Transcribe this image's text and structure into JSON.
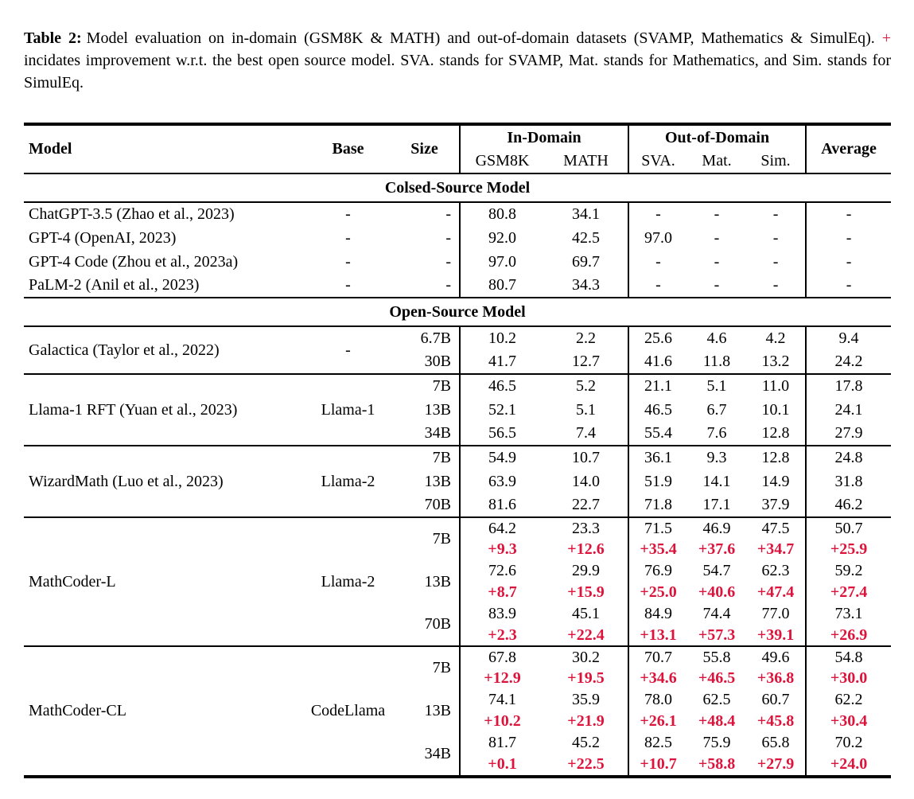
{
  "page": {
    "background": "#ffffff",
    "text_color": "#000000",
    "accent_red": "#dc143c"
  },
  "caption": {
    "label": "Table 2:",
    "text_before_plus": "Model evaluation on in-domain (GSM8K & MATH) and out-of-domain datasets (SVAMP, Mathematics & SimulEq).",
    "plus_symbol": "+",
    "text_after_plus": "incidates improvement w.r.t. the best open source model. SVA. stands for SVAMP, Mat. stands for Mathematics, and Sim. stands for SimulEq."
  },
  "table": {
    "header": {
      "model": "Model",
      "base": "Base",
      "size": "Size",
      "in_domain": "In-Domain",
      "out_of_domain": "Out-of-Domain",
      "gsm8k": "GSM8K",
      "math": "MATH",
      "sva": "SVA.",
      "mat": "Mat.",
      "sim": "Sim.",
      "average": "Average"
    },
    "blocks": [
      {
        "kind": "section",
        "label": "Colsed-Source Model"
      },
      {
        "kind": "rows",
        "rows": [
          {
            "model": "ChatGPT-3.5 (Zhao et al., 2023)",
            "base": "-",
            "size": "-",
            "values": [
              "80.8",
              "34.1",
              "-",
              "-",
              "-",
              "-"
            ]
          },
          {
            "model": "GPT-4 (OpenAI, 2023)",
            "base": "-",
            "size": "-",
            "values": [
              "92.0",
              "42.5",
              "97.0",
              "-",
              "-",
              "-"
            ]
          },
          {
            "model": "GPT-4 Code (Zhou et al., 2023a)",
            "base": "-",
            "size": "-",
            "values": [
              "97.0",
              "69.7",
              "-",
              "-",
              "-",
              "-"
            ]
          },
          {
            "model": "PaLM-2 (Anil et al., 2023)",
            "base": "-",
            "size": "-",
            "values": [
              "80.7",
              "34.3",
              "-",
              "-",
              "-",
              "-"
            ]
          }
        ]
      },
      {
        "kind": "section",
        "label": "Open-Source Model"
      },
      {
        "kind": "group",
        "model": "Galactica (Taylor et al., 2022)",
        "base": "-",
        "sizes": [
          {
            "size": "6.7B",
            "values": [
              "10.2",
              "2.2",
              "25.6",
              "4.6",
              "4.2",
              "9.4"
            ]
          },
          {
            "size": "30B",
            "values": [
              "41.7",
              "12.7",
              "41.6",
              "11.8",
              "13.2",
              "24.2"
            ]
          }
        ]
      },
      {
        "kind": "group",
        "model": "Llama-1 RFT (Yuan et al., 2023)",
        "base": "Llama-1",
        "sizes": [
          {
            "size": "7B",
            "values": [
              "46.5",
              "5.2",
              "21.1",
              "5.1",
              "11.0",
              "17.8"
            ]
          },
          {
            "size": "13B",
            "values": [
              "52.1",
              "5.1",
              "46.5",
              "6.7",
              "10.1",
              "24.1"
            ]
          },
          {
            "size": "34B",
            "values": [
              "56.5",
              "7.4",
              "55.4",
              "7.6",
              "12.8",
              "27.9"
            ]
          }
        ]
      },
      {
        "kind": "group",
        "model": "WizardMath (Luo et al., 2023)",
        "base": "Llama-2",
        "sizes": [
          {
            "size": "7B",
            "values": [
              "54.9",
              "10.7",
              "36.1",
              "9.3",
              "12.8",
              "24.8"
            ]
          },
          {
            "size": "13B",
            "values": [
              "63.9",
              "14.0",
              "51.9",
              "14.1",
              "14.9",
              "31.8"
            ]
          },
          {
            "size": "70B",
            "values": [
              "81.6",
              "22.7",
              "71.8",
              "17.1",
              "37.9",
              "46.2"
            ]
          }
        ]
      },
      {
        "kind": "group",
        "model": "MathCoder-L",
        "base": "Llama-2",
        "sizes": [
          {
            "size": "7B",
            "values": [
              "64.2",
              "23.3",
              "71.5",
              "46.9",
              "47.5",
              "50.7"
            ],
            "improvements": [
              "+9.3",
              "+12.6",
              "+35.4",
              "+37.6",
              "+34.7",
              "+25.9"
            ]
          },
          {
            "size": "13B",
            "values": [
              "72.6",
              "29.9",
              "76.9",
              "54.7",
              "62.3",
              "59.2"
            ],
            "improvements": [
              "+8.7",
              "+15.9",
              "+25.0",
              "+40.6",
              "+47.4",
              "+27.4"
            ]
          },
          {
            "size": "70B",
            "values": [
              "83.9",
              "45.1",
              "84.9",
              "74.4",
              "77.0",
              "73.1"
            ],
            "improvements": [
              "+2.3",
              "+22.4",
              "+13.1",
              "+57.3",
              "+39.1",
              "+26.9"
            ]
          }
        ]
      },
      {
        "kind": "group",
        "model": "MathCoder-CL",
        "base": "CodeLlama",
        "sizes": [
          {
            "size": "7B",
            "values": [
              "67.8",
              "30.2",
              "70.7",
              "55.8",
              "49.6",
              "54.8"
            ],
            "improvements": [
              "+12.9",
              "+19.5",
              "+34.6",
              "+46.5",
              "+36.8",
              "+30.0"
            ]
          },
          {
            "size": "13B",
            "values": [
              "74.1",
              "35.9",
              "78.0",
              "62.5",
              "60.7",
              "62.2"
            ],
            "improvements": [
              "+10.2",
              "+21.9",
              "+26.1",
              "+48.4",
              "+45.8",
              "+30.4"
            ]
          },
          {
            "size": "34B",
            "values": [
              "81.7",
              "45.2",
              "82.5",
              "75.9",
              "65.8",
              "70.2"
            ],
            "improvements": [
              "+0.1",
              "+22.5",
              "+10.7",
              "+58.8",
              "+27.9",
              "+24.0"
            ]
          }
        ]
      }
    ]
  }
}
